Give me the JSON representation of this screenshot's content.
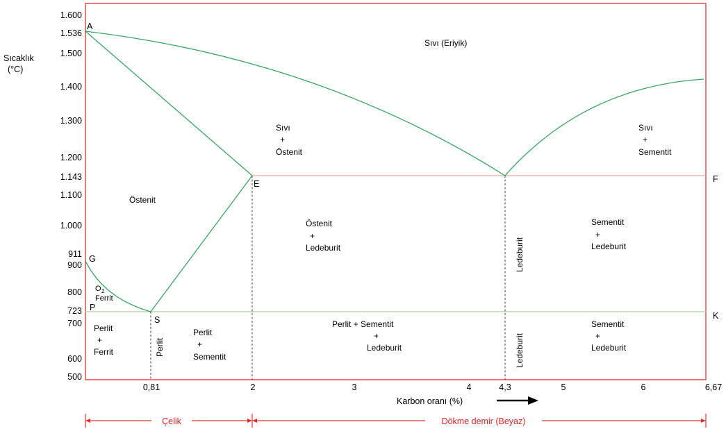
{
  "axes": {
    "ylabel_line1": "Sıcaklık",
    "ylabel_line2": "(°C)",
    "xlabel": "Karbon oranı (%)",
    "y_ticks": [
      {
        "value": 1600,
        "label": "1.600"
      },
      {
        "value": 1536,
        "label": "1.536"
      },
      {
        "value": 1500,
        "label": "1.500"
      },
      {
        "value": 1400,
        "label": "1.400"
      },
      {
        "value": 1300,
        "label": "1.300"
      },
      {
        "value": 1200,
        "label": "1.200"
      },
      {
        "value": 1143,
        "label": "1.143"
      },
      {
        "value": 1100,
        "label": "1.100"
      },
      {
        "value": 1000,
        "label": "1.000"
      },
      {
        "value": 911,
        "label": "911"
      },
      {
        "value": 900,
        "label": "900"
      },
      {
        "value": 800,
        "label": "800"
      },
      {
        "value": 723,
        "label": "723"
      },
      {
        "value": 700,
        "label": "700"
      },
      {
        "value": 600,
        "label": "600"
      },
      {
        "value": 500,
        "label": "500"
      }
    ],
    "x_ticks": [
      {
        "value": 0.81,
        "label": "0,81"
      },
      {
        "value": 2,
        "label": "2"
      },
      {
        "value": 3,
        "label": "3"
      },
      {
        "value": 4,
        "label": "4"
      },
      {
        "value": 4.3,
        "label": "4,3"
      },
      {
        "value": 5,
        "label": "5"
      },
      {
        "value": 6,
        "label": "6"
      },
      {
        "value": 6.67,
        "label": "6,67"
      }
    ]
  },
  "points": {
    "A": "A",
    "G": "G",
    "P": "P",
    "S": "S",
    "E": "E",
    "F": "F",
    "K": "K"
  },
  "regions": {
    "liquid": "Sıvı (Eriyik)",
    "liq_aus_1": "Sıvı",
    "liq_aus_2": "+",
    "liq_aus_3": "Östenit",
    "liq_cem_1": "Sıvı",
    "liq_cem_2": "+",
    "liq_cem_3": "Sementit",
    "austenite": "Östenit",
    "aus_led_1": "Östenit",
    "aus_led_2": "+",
    "aus_led_3": "Ledeburit",
    "ledeburit_upper": "Ledeburit",
    "cem_led_up_1": "Sementit",
    "cem_led_up_2": "+",
    "cem_led_up_3": "Ledeburit",
    "ferrit_o": "O",
    "ferrit_sub": "2",
    "ferrit": "Ferrit",
    "perl_fer_1": "Perlit",
    "perl_fer_2": "+",
    "perl_fer_3": "Ferrit",
    "perlit": "Perlit",
    "perl_cem_1": "Perlit",
    "perl_cem_2": "+",
    "perl_cem_3": "Sementit",
    "pcl_1": "Perlit + Sementit",
    "pcl_2": "+",
    "pcl_3": "Ledeburit",
    "ledeburit_lower": "Ledeburit",
    "cem_led_lo_1": "Sementit",
    "cem_led_lo_2": "+",
    "cem_led_lo_3": "Ledeburit"
  },
  "classes": {
    "celik": "Çelik",
    "dokme": "Dökme demir (Beyaz)"
  },
  "colors": {
    "frame": "#e0302e",
    "phase_line": "#3aa364",
    "eutectic_line": "#f2b8a8",
    "eutectoid_line": "#bcd8a8",
    "dashed": "#444444",
    "class_text": "#d9262a"
  }
}
